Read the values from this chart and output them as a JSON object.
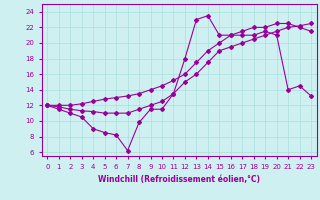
{
  "xlabel": "Windchill (Refroidissement éolien,°C)",
  "background_color": "#cff0f0",
  "grid_color": "#aadddd",
  "line_color": "#990099",
  "x_ticks": [
    0,
    1,
    2,
    3,
    4,
    5,
    6,
    7,
    8,
    9,
    10,
    11,
    12,
    13,
    14,
    15,
    16,
    17,
    18,
    19,
    20,
    21,
    22,
    23
  ],
  "y_ticks": [
    6,
    8,
    10,
    12,
    14,
    16,
    18,
    20,
    22,
    24
  ],
  "ylim": [
    5.5,
    25.0
  ],
  "xlim": [
    -0.5,
    23.5
  ],
  "series1_y": [
    12.0,
    11.5,
    11.0,
    10.5,
    9.0,
    8.5,
    8.2,
    6.2,
    9.8,
    11.5,
    11.5,
    13.5,
    18.0,
    23.0,
    23.5,
    21.0,
    21.0,
    21.0,
    21.0,
    21.5,
    21.0,
    14.0,
    14.5,
    13.2
  ],
  "series2_y": [
    12.0,
    12.0,
    12.0,
    12.2,
    12.5,
    12.8,
    13.0,
    13.2,
    13.5,
    14.0,
    14.5,
    15.2,
    16.0,
    17.5,
    19.0,
    20.0,
    21.0,
    21.5,
    22.0,
    22.0,
    22.5,
    22.5,
    22.0,
    21.5
  ],
  "series3_y": [
    12.0,
    11.8,
    11.5,
    11.3,
    11.2,
    11.0,
    11.0,
    11.0,
    11.5,
    12.0,
    12.5,
    13.5,
    15.0,
    16.0,
    17.5,
    19.0,
    19.5,
    20.0,
    20.5,
    21.0,
    21.5,
    22.0,
    22.2,
    22.5
  ],
  "marker": "D",
  "marker_size": 2,
  "line_width": 0.8
}
